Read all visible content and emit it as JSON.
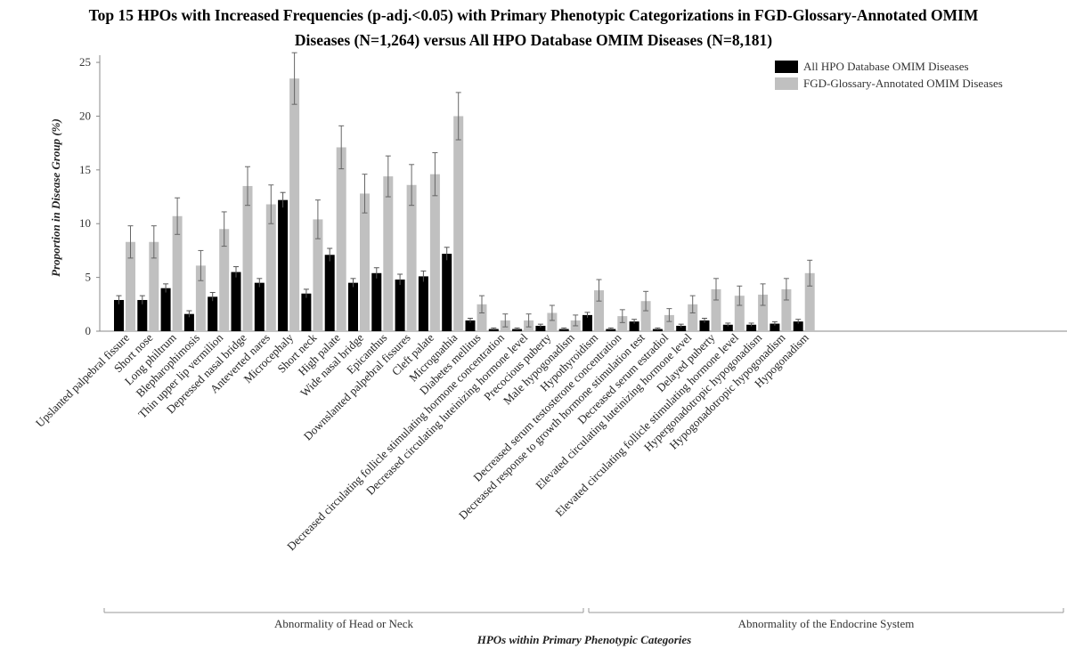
{
  "chart_data": {
    "type": "bar",
    "title_lines": [
      "Top 15 HPOs with Increased Frequencies (p-adj.<0.05) with Primary Phenotypic Categorizations in FGD-Glossary-Annotated OMIM",
      "Diseases (N=1,264) versus All HPO Database OMIM Diseases (N=8,181)"
    ],
    "ylabel": "Proportion in Disease Group (%)",
    "xlabel": "HPOs within Primary Phenotypic Categories",
    "ylim": [
      0,
      26
    ],
    "yticks": [
      0,
      5,
      10,
      15,
      20,
      25
    ],
    "grid": false,
    "legend_position": "top-right",
    "categories": [
      "Upslanted palpebral fissure",
      "Short nose",
      "Long philtrum",
      "Blepharophimosis",
      "Thin upper lip vermilion",
      "Depressed nasal bridge",
      "Anteverted nares",
      "Microcephaly",
      "Short neck",
      "High palate",
      "Wide nasal bridge",
      "Epicanthus",
      "Downslanted palpebral fissures",
      "Cleft palate",
      "Micrognathia",
      "Diabetes mellitus",
      "Decreased circulating follicle stimulating hormone concentration",
      "Decreased circulating luteinizing hormone level",
      "Precocious puberty",
      "Male hypogonadism",
      "Hypothyroidism",
      "Decreased serum testosterone concentration",
      "Decreased response to growth hormone stimulation test",
      "Decreased serum estradiol",
      "Elevated circulating luteinizing hormone level",
      "Delayed puberty",
      "Elevated circulating follicle stimulating hormone level",
      "Hypergonadotropic hypogonadism",
      "Hypogonadotropic hypogonadism",
      "Hypogonadism"
    ],
    "groups": [
      {
        "label": "Abnormality of Head or Neck",
        "start": 0,
        "end": 14
      },
      {
        "label": "Abnormality of the Endocrine System",
        "start": 15,
        "end": 29
      }
    ],
    "series": [
      {
        "name": "All HPO Database OMIM Diseases",
        "color": "#000000",
        "values": [
          2.9,
          2.9,
          4.0,
          1.6,
          3.2,
          5.5,
          4.5,
          12.2,
          3.5,
          7.1,
          4.5,
          5.4,
          4.8,
          5.1,
          7.2,
          1.0,
          0.2,
          0.2,
          0.5,
          0.2,
          1.5,
          0.2,
          0.9,
          0.2,
          0.5,
          1.0,
          0.6,
          0.6,
          0.7,
          0.9
        ],
        "errors": [
          0.4,
          0.4,
          0.4,
          0.3,
          0.4,
          0.5,
          0.4,
          0.7,
          0.4,
          0.6,
          0.4,
          0.5,
          0.5,
          0.5,
          0.6,
          0.2,
          0.1,
          0.1,
          0.15,
          0.1,
          0.25,
          0.1,
          0.2,
          0.1,
          0.15,
          0.2,
          0.15,
          0.15,
          0.18,
          0.2
        ]
      },
      {
        "name": "FGD-Glossary-Annotated OMIM Diseases",
        "color": "#c0c0c0",
        "values": [
          8.3,
          8.3,
          10.7,
          6.1,
          9.5,
          13.5,
          11.8,
          23.5,
          10.4,
          17.1,
          12.8,
          14.4,
          13.6,
          14.6,
          20.0,
          2.5,
          1.0,
          1.0,
          1.7,
          1.0,
          3.8,
          1.4,
          2.8,
          1.5,
          2.5,
          3.9,
          3.3,
          3.4,
          3.9,
          5.4
        ]
      }
    ],
    "series_errors_2": [
      1.5,
      1.5,
      1.7,
      1.4,
      1.6,
      1.8,
      1.8,
      2.4,
      1.8,
      2.0,
      1.8,
      1.9,
      1.9,
      2.0,
      2.2,
      0.8,
      0.6,
      0.6,
      0.7,
      0.5,
      1.0,
      0.6,
      0.9,
      0.6,
      0.8,
      1.0,
      0.9,
      1.0,
      1.0,
      1.2
    ]
  }
}
